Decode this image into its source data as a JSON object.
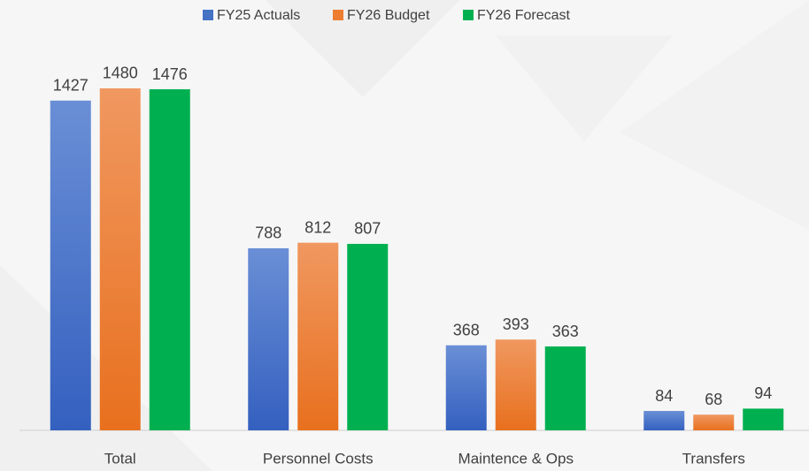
{
  "chart_data": {
    "type": "bar",
    "categories": [
      "Total",
      "Personnel Costs",
      "Maintence & Ops",
      "Transfers"
    ],
    "series": [
      {
        "name": "FY25 Actuals",
        "color": "#4472c4",
        "values": [
          1427,
          788,
          368,
          84
        ]
      },
      {
        "name": "FY26 Budget",
        "color": "#ed7d31",
        "values": [
          1480,
          812,
          393,
          68
        ]
      },
      {
        "name": "FY26 Forecast",
        "color": "#00b050",
        "values": [
          1476,
          807,
          363,
          94
        ]
      }
    ],
    "ylim": [
      0,
      1600
    ],
    "legend": "top"
  }
}
